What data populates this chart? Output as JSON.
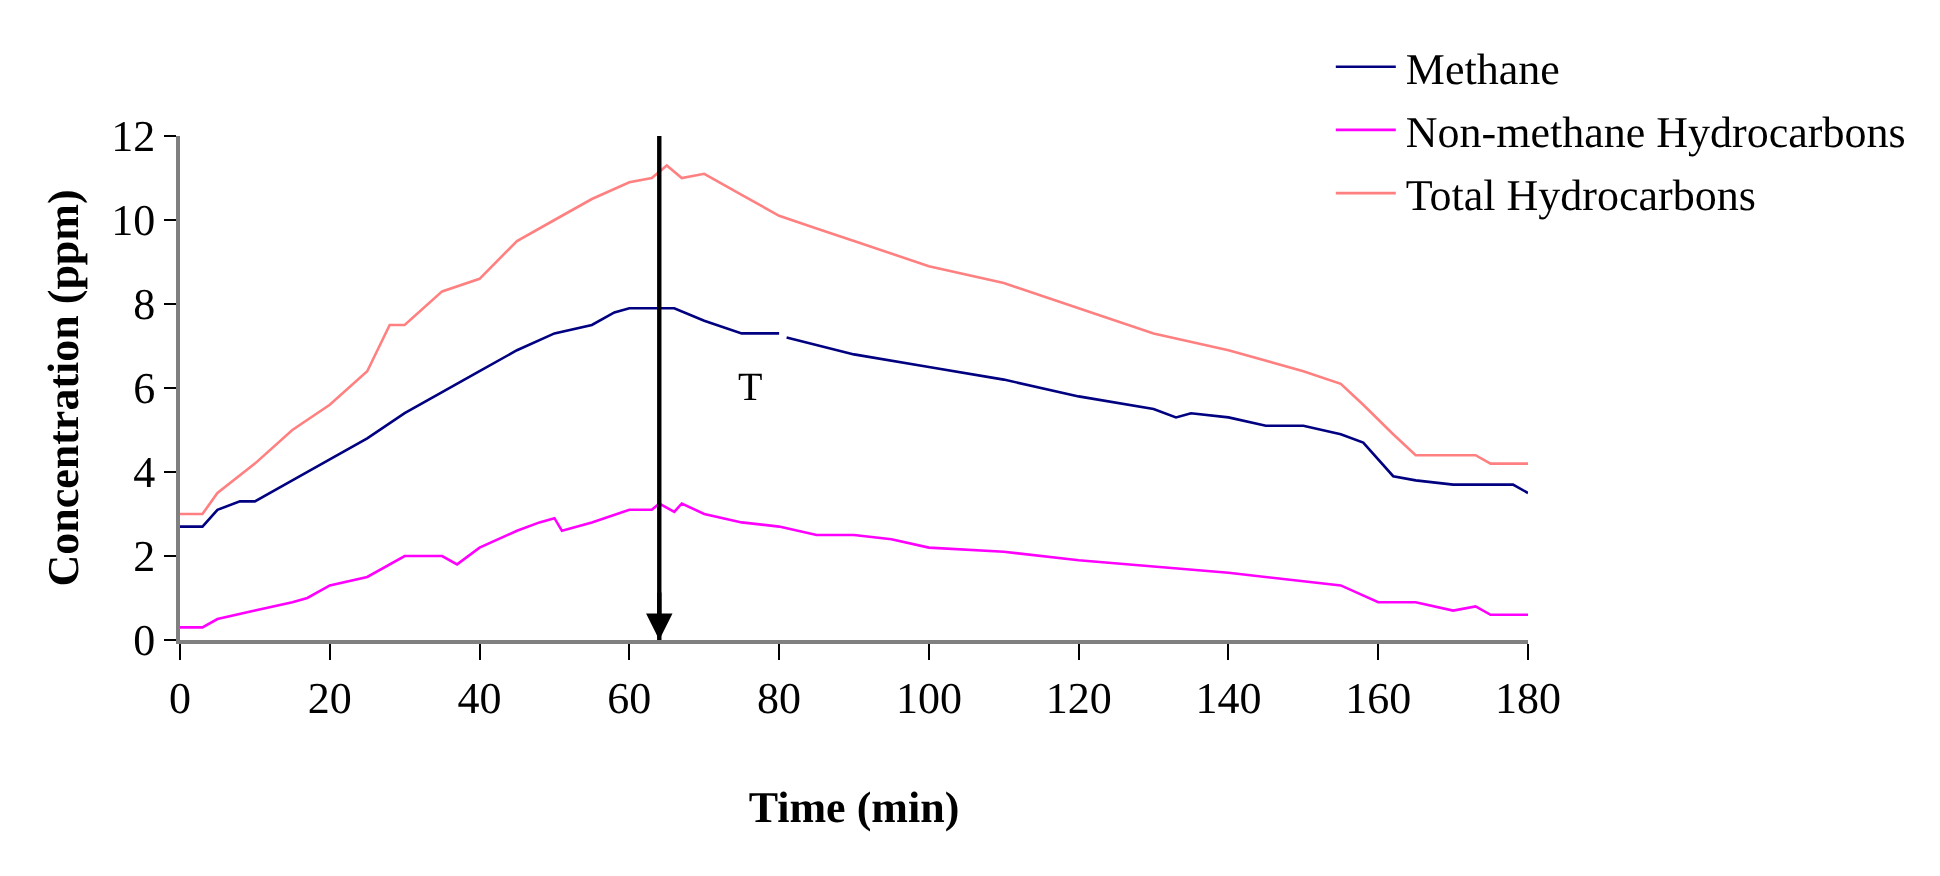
{
  "chart_data": {
    "type": "line",
    "xlabel": "Time (min)",
    "ylabel": "Concentration (ppm)",
    "xlim": [
      0,
      180
    ],
    "xticks": [
      0,
      20,
      40,
      60,
      80,
      100,
      120,
      140,
      160,
      180
    ],
    "ylim": [
      0,
      12
    ],
    "yticks": [
      0,
      2,
      4,
      6,
      8,
      10,
      12
    ],
    "grid": false,
    "legend": "top right",
    "marker": "none",
    "line_style": "solid",
    "ref_lines": [
      {
        "axis": "x",
        "value": 64,
        "label": "T",
        "color": "#000000"
      }
    ],
    "series": [
      {
        "name": "Methane",
        "color": "#000080",
        "x": [
          0,
          3,
          5,
          8,
          10,
          15,
          20,
          25,
          30,
          35,
          40,
          45,
          50,
          55,
          58,
          60,
          66,
          70,
          75,
          80,
          80.5,
          81,
          90,
          100,
          110,
          120,
          130,
          133,
          135,
          140,
          145,
          150,
          155,
          158,
          162,
          165,
          170,
          175,
          178,
          180
        ],
        "values": [
          2.7,
          2.7,
          3.1,
          3.3,
          3.3,
          3.8,
          4.3,
          4.8,
          5.4,
          5.9,
          6.4,
          6.9,
          7.3,
          7.5,
          7.8,
          7.9,
          7.9,
          7.6,
          7.3,
          7.3,
          null,
          7.2,
          6.8,
          6.5,
          6.2,
          5.8,
          5.5,
          5.3,
          5.4,
          5.3,
          5.1,
          5.1,
          4.9,
          4.7,
          3.9,
          3.8,
          3.7,
          3.7,
          3.7,
          3.5
        ]
      },
      {
        "name": "Non-methane Hydrocarbons",
        "color": "#ff00ff",
        "x": [
          0,
          3,
          5,
          10,
          15,
          17,
          20,
          25,
          30,
          35,
          37,
          40,
          45,
          48,
          50,
          51,
          55,
          60,
          63,
          64,
          66,
          67,
          70,
          75,
          80,
          85,
          90,
          95,
          100,
          110,
          120,
          130,
          140,
          150,
          155,
          160,
          165,
          170,
          173,
          175,
          180
        ],
        "values": [
          0.3,
          0.3,
          0.5,
          0.7,
          0.9,
          1.0,
          1.3,
          1.5,
          2.0,
          2.0,
          1.8,
          2.2,
          2.6,
          2.8,
          2.9,
          2.6,
          2.8,
          3.1,
          3.1,
          3.25,
          3.05,
          3.25,
          3.0,
          2.8,
          2.7,
          2.5,
          2.5,
          2.4,
          2.2,
          2.1,
          1.9,
          1.75,
          1.6,
          1.4,
          1.3,
          0.9,
          0.9,
          0.7,
          0.8,
          0.6,
          0.6
        ]
      },
      {
        "name": "Total Hydrocarbons",
        "color": "#ff8080",
        "x": [
          0,
          3,
          5,
          10,
          15,
          20,
          25,
          28,
          30,
          35,
          40,
          45,
          50,
          55,
          60,
          63,
          65,
          67,
          70,
          75,
          80,
          85,
          90,
          100,
          110,
          120,
          130,
          140,
          150,
          155,
          158,
          162,
          165,
          170,
          173,
          175,
          180
        ],
        "values": [
          3.0,
          3.0,
          3.5,
          4.2,
          5.0,
          5.6,
          6.4,
          7.5,
          7.5,
          8.3,
          8.6,
          9.5,
          10.0,
          10.5,
          10.9,
          11.0,
          11.3,
          11.0,
          11.1,
          10.6,
          10.1,
          9.8,
          9.5,
          8.9,
          8.5,
          7.9,
          7.3,
          6.9,
          6.4,
          6.1,
          5.6,
          4.9,
          4.4,
          4.4,
          4.4,
          4.2,
          4.2
        ]
      }
    ]
  }
}
